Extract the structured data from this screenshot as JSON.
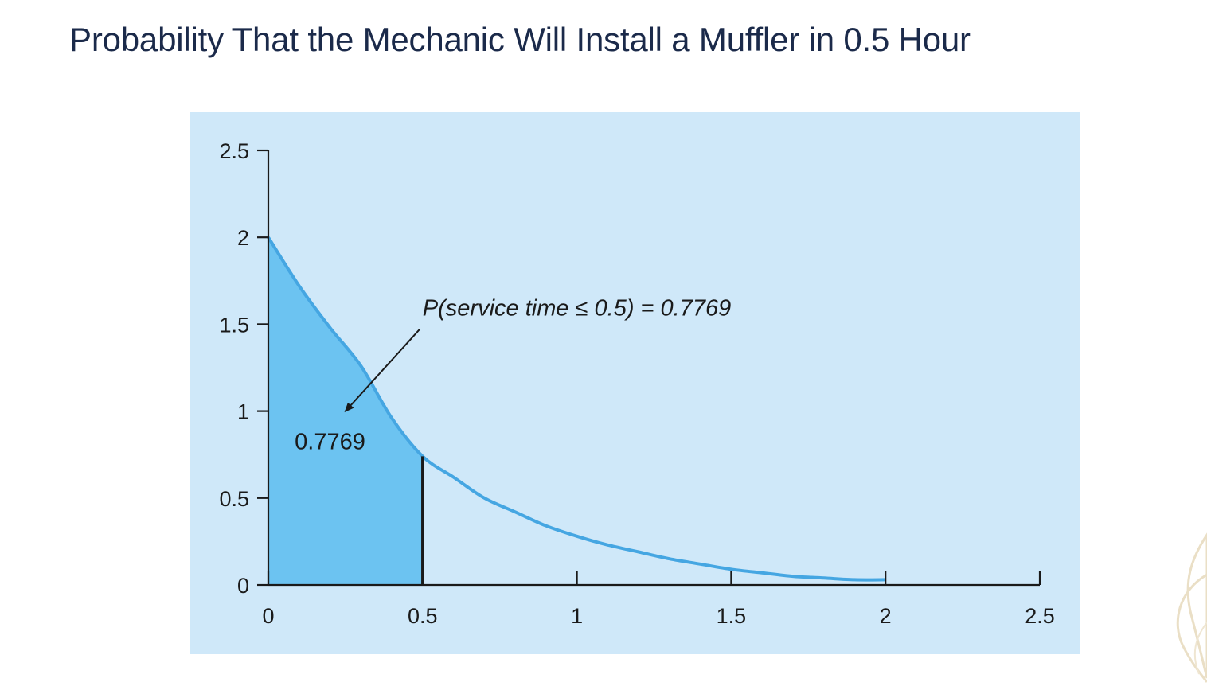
{
  "slide": {
    "title": "Probability That the Mechanic Will Install a Muffler in 0.5 Hour"
  },
  "colors": {
    "panel_bg": "#cfe8f9",
    "curve": "#45a6e2",
    "shaded_area": "#6cc3f1",
    "axis": "#1a1a1a",
    "title": "#1b2a4a"
  },
  "chart_data": {
    "type": "area",
    "title": "",
    "xlabel": "",
    "ylabel": "",
    "xlim": [
      0,
      2.5
    ],
    "ylim": [
      0,
      2.5
    ],
    "x_ticks": [
      "0",
      "0.5",
      "1",
      "1.5",
      "2",
      "2.5"
    ],
    "y_ticks": [
      "0",
      "0.5",
      "1",
      "1.5",
      "2",
      "2.5"
    ],
    "grid": false,
    "series": [
      {
        "values_x": [
          0,
          0.1,
          0.2,
          0.3,
          0.4,
          0.5,
          0.6,
          0.7,
          0.8,
          0.9,
          1.0,
          1.1,
          1.2,
          1.3,
          1.4,
          1.5,
          1.6,
          1.7,
          1.8,
          1.9,
          2.0
        ],
        "values_y": [
          2.0,
          1.72,
          1.48,
          1.26,
          0.96,
          0.74,
          0.62,
          0.5,
          0.42,
          0.34,
          0.28,
          0.23,
          0.19,
          0.15,
          0.12,
          0.09,
          0.07,
          0.05,
          0.04,
          0.03,
          0.03
        ]
      }
    ],
    "shaded_region": {
      "x_from": 0,
      "x_to": 0.5,
      "label": "0.7769",
      "label_position": [
        0.2,
        0.78
      ]
    },
    "annotation": {
      "text": "P(service time ≤ 0.5) = 0.7769",
      "text_position": [
        0.5,
        1.55
      ],
      "arrow_from": [
        0.49,
        1.47
      ],
      "arrow_to": [
        0.25,
        1.0
      ]
    }
  }
}
